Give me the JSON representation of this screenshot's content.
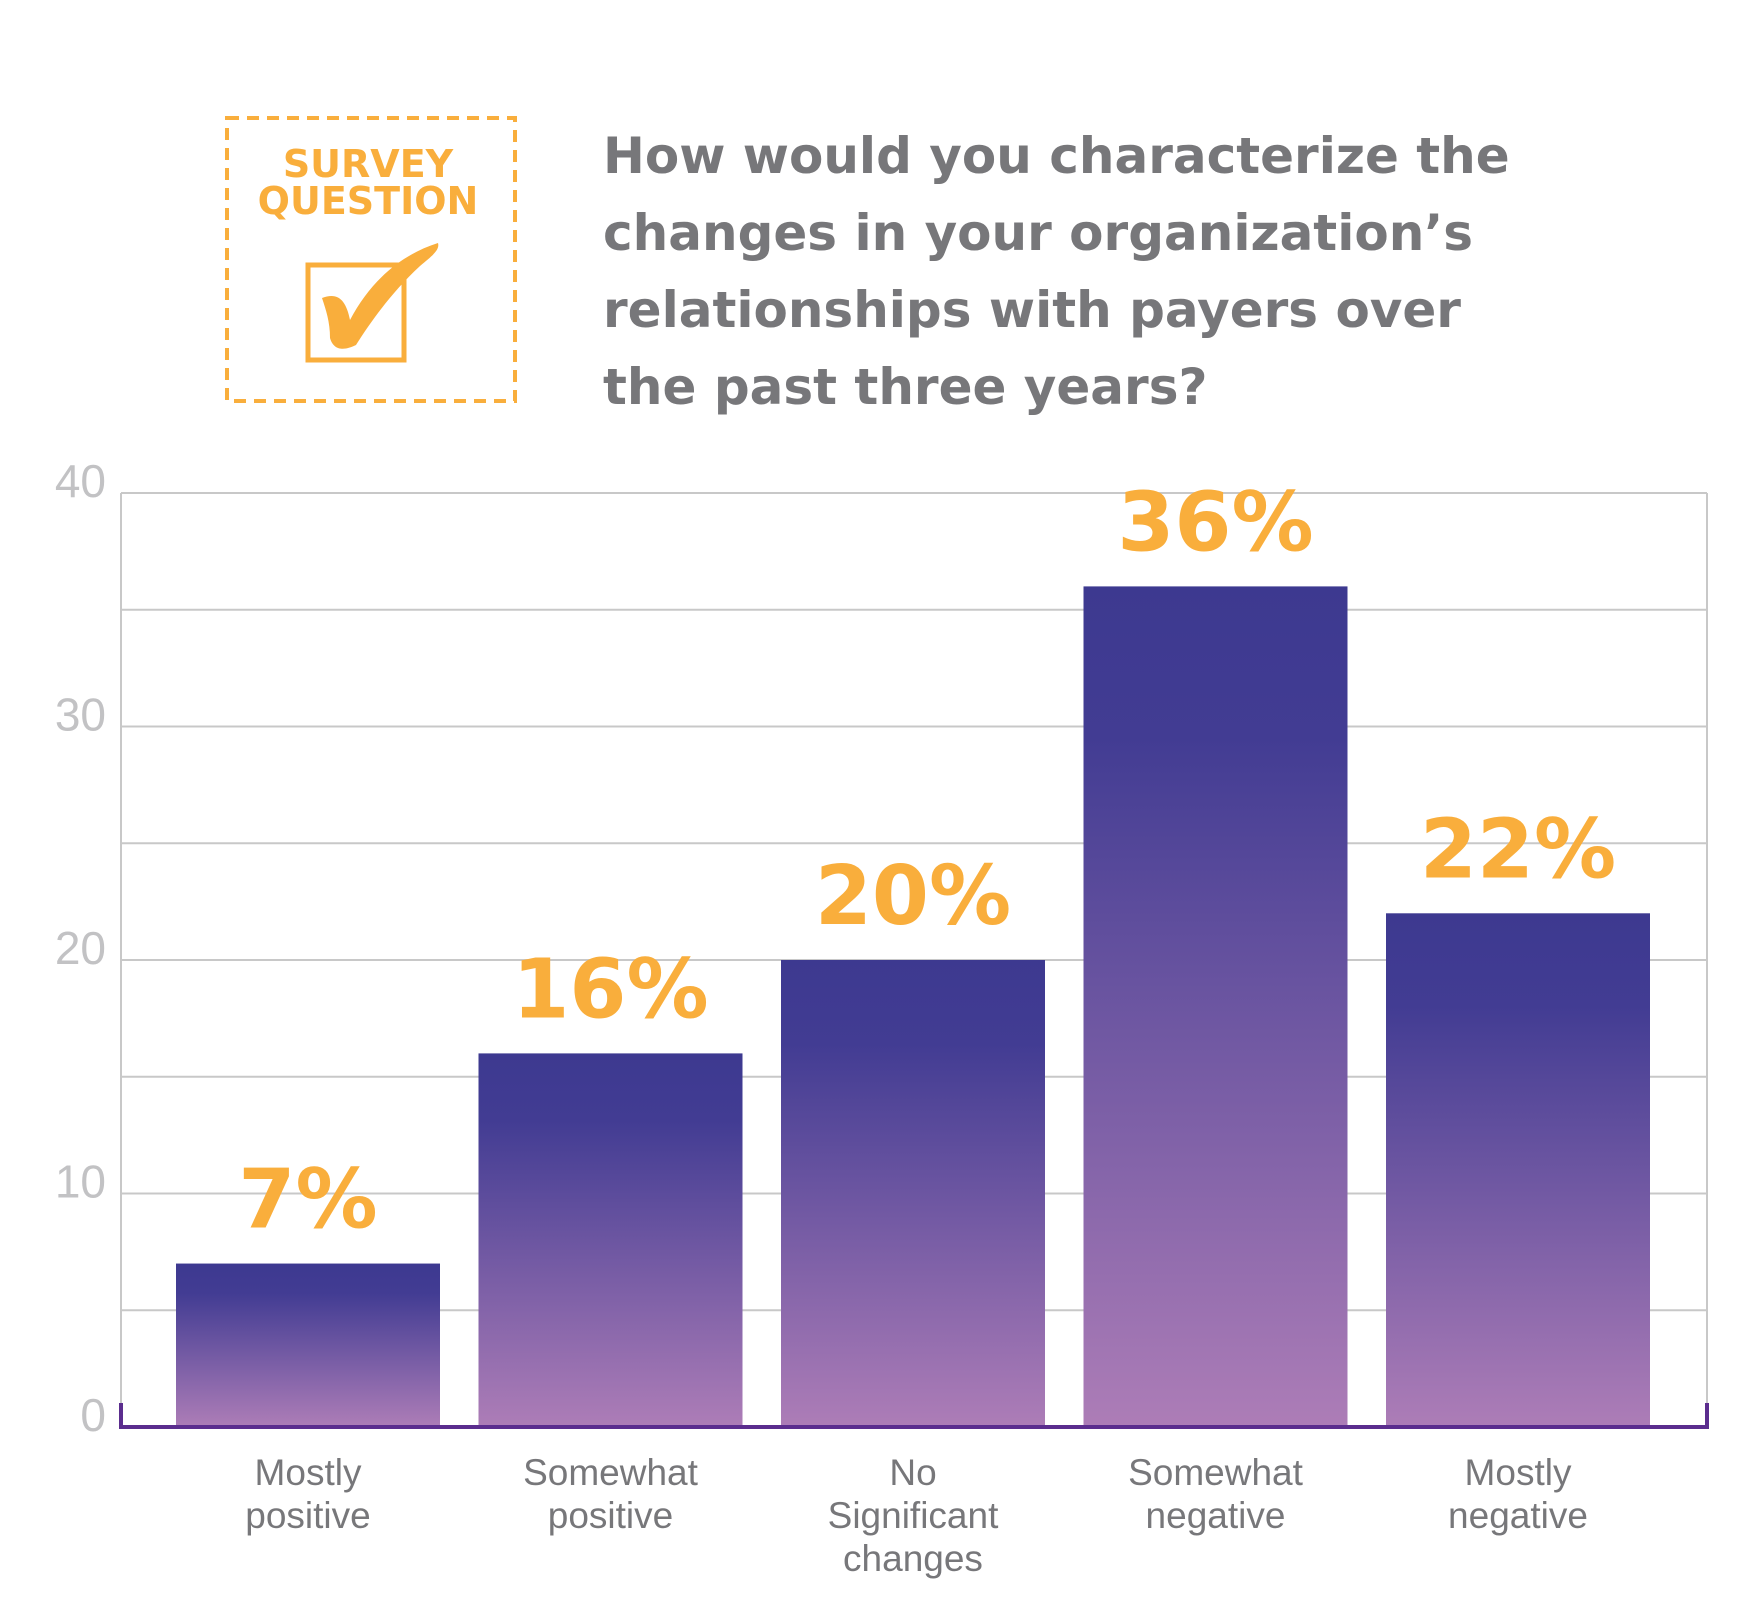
{
  "survey_badge": {
    "line1": "SURVEY",
    "line2": "QUESTION"
  },
  "chart_data": {
    "type": "bar",
    "title_lines": [
      "How would you characterize the",
      "changes in your organization’s",
      "relationships with payers over",
      "the past three years?"
    ],
    "categories": [
      "Mostly positive",
      "Somewhat positive",
      "No Significant changes",
      "Somewhat negative",
      "Mostly negative"
    ],
    "values": [
      7,
      16,
      20,
      36,
      22
    ],
    "value_labels": [
      "7%",
      "16%",
      "20%",
      "36%",
      "22%"
    ],
    "color": "#403b92",
    "ylim": [
      0,
      40
    ],
    "yticks": [
      0,
      10,
      20,
      30,
      40
    ],
    "minor_yticks": [
      5,
      15,
      25,
      35
    ],
    "grid": true
  }
}
